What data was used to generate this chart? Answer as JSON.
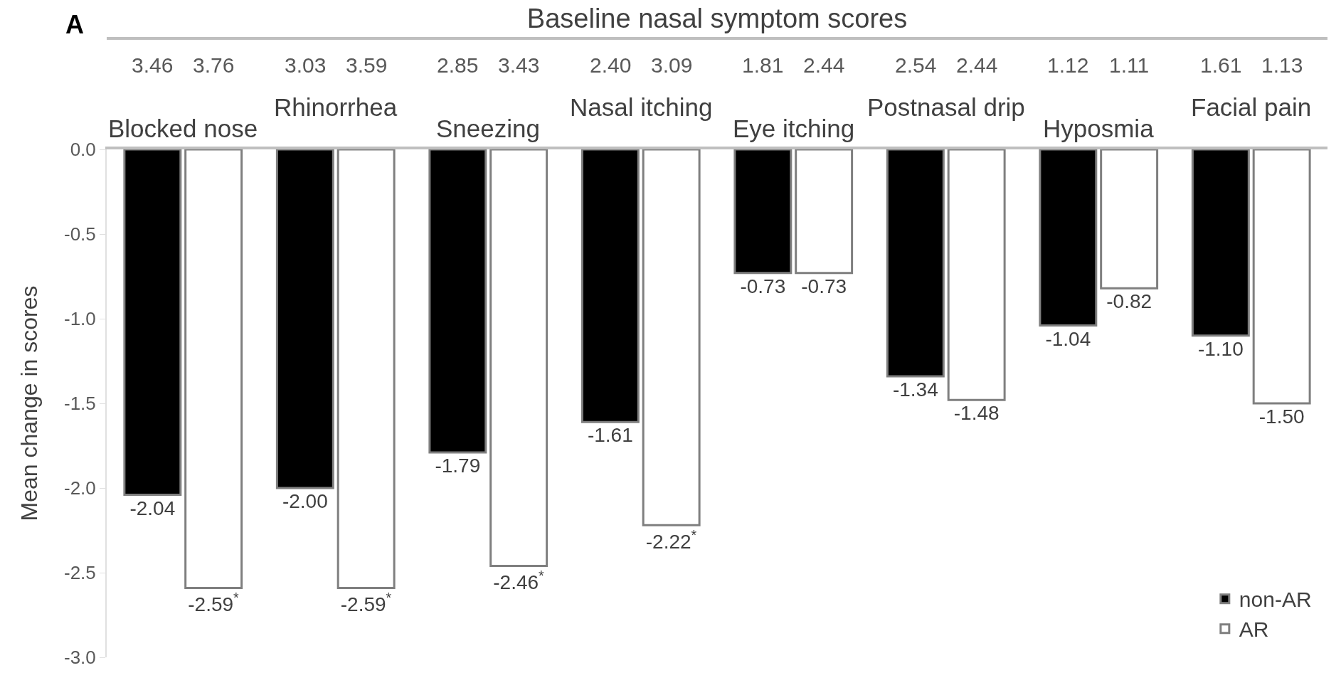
{
  "chart_data": [
    {
      "type": "other",
      "title": "Baseline nasal symptom scores",
      "annotations": [
        "3.46",
        "3.76",
        "3.03",
        "3.59",
        "2.85",
        "3.43",
        "2.40",
        "3.09",
        "1.81",
        "2.44",
        "2.54",
        "2.44",
        "1.12",
        "1.11",
        "1.61",
        "1.13"
      ]
    },
    {
      "type": "bar",
      "ylabel": "Mean change in scores",
      "annotations": [
        "A"
      ],
      "categories": [
        "Blocked nose",
        "Rhinorrhea",
        "Sneezing",
        "Nasal itching",
        "Eye itching",
        "Postnasal drip",
        "Hyposmia",
        "Facial pain"
      ],
      "series": [
        {
          "name": "non-AR",
          "color": "#000000",
          "values": [
            -2.04,
            -2.0,
            -1.79,
            -1.61,
            -0.73,
            -1.34,
            -1.04,
            -1.1
          ],
          "value_labels": [
            "-2.04",
            "-2.00",
            "-1.79",
            "-1.61",
            "-0.73",
            "-1.34",
            "-1.04",
            "-1.10"
          ]
        },
        {
          "name": "AR",
          "color": "#ffffff",
          "values": [
            -2.59,
            -2.59,
            -2.46,
            -2.22,
            -0.73,
            -1.48,
            -0.82,
            -1.5
          ],
          "value_labels": [
            "-2.59$^{*}$",
            "-2.59$^{*}$",
            "-2.46$^{*}$",
            "-2.22$^{*}$",
            "-0.73",
            "-1.48",
            "-0.82",
            "-1.50"
          ]
        }
      ],
      "ylim": [
        -3,
        0
      ],
      "yticks": [
        {
          "value": 0,
          "label": "0.0"
        },
        -0.5,
        {
          "value": -1,
          "label": "-1.0"
        },
        -1.5,
        {
          "value": -2,
          "label": "-2.0"
        },
        -2.5,
        {
          "value": -3,
          "label": "-3.0"
        }
      ],
      "legend": "bottom right"
    }
  ]
}
